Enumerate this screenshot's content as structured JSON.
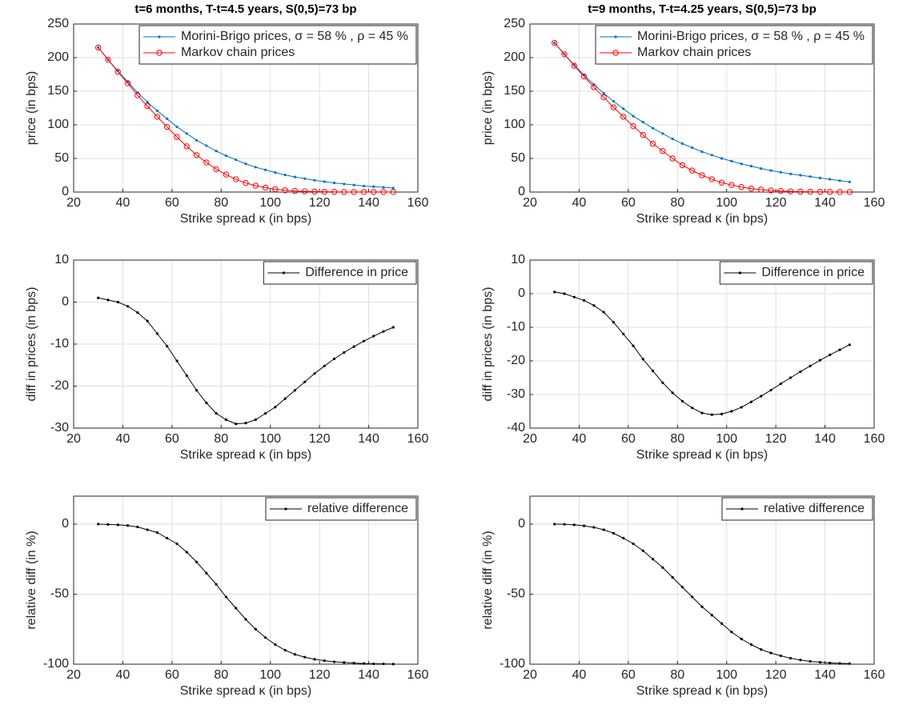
{
  "chart_data": [
    {
      "type": "line",
      "title": "t=6 months, T-t=4.5 years, S(0,5)=73 bp",
      "xlabel": "Strike spread κ (in bps)",
      "ylabel": "price (in bps)",
      "x": [
        30,
        34,
        38,
        42,
        46,
        50,
        54,
        58,
        62,
        66,
        70,
        74,
        78,
        82,
        86,
        90,
        94,
        98,
        102,
        106,
        110,
        114,
        118,
        122,
        126,
        130,
        134,
        138,
        142,
        146,
        150
      ],
      "series": [
        {
          "name": "Morini-Brigo prices, σ = 58 % , ρ = 45 %",
          "color": "#0072bd",
          "marker": "dot",
          "values": [
            215,
            197,
            180,
            164,
            148,
            134,
            121,
            109,
            97,
            87,
            77,
            69,
            61,
            54,
            48,
            42,
            37,
            33,
            29,
            25.5,
            22.5,
            20,
            17.5,
            15.5,
            13.5,
            12,
            10.5,
            9,
            8,
            7,
            6
          ]
        },
        {
          "name": "Markov chain prices",
          "color": "#ff0000",
          "marker": "circle",
          "values": [
            215,
            197,
            179,
            162,
            144,
            128,
            112,
            97,
            82,
            68,
            55,
            44,
            34,
            26,
            19,
            13.5,
            9.5,
            6.5,
            4.2,
            2.7,
            1.7,
            1.1,
            0.7,
            0.4,
            0.3,
            0.2,
            0.1,
            0.1,
            0.1,
            0.1,
            0.1
          ]
        }
      ],
      "xlim": [
        20,
        160
      ],
      "xticks": [
        20,
        40,
        60,
        80,
        100,
        120,
        140,
        160
      ],
      "ylim": [
        0,
        250
      ],
      "yticks": [
        0,
        50,
        100,
        150,
        200,
        250
      ],
      "grid": true,
      "legend": "upper right"
    },
    {
      "type": "line",
      "title": "t=9 months, T-t=4.25 years, S(0,5)=73 bp",
      "xlabel": "Strike spread κ (in bps)",
      "ylabel": "price (in bps)",
      "x": [
        30,
        34,
        38,
        42,
        46,
        50,
        54,
        58,
        62,
        66,
        70,
        74,
        78,
        82,
        86,
        90,
        94,
        98,
        102,
        106,
        110,
        114,
        118,
        122,
        126,
        130,
        134,
        138,
        142,
        146,
        150
      ],
      "series": [
        {
          "name": "Morini-Brigo prices, σ = 58 % , ρ = 45 %",
          "color": "#0072bd",
          "marker": "dot",
          "values": [
            222,
            205,
            189,
            174,
            160,
            147,
            135,
            124,
            113,
            104,
            95,
            87,
            79,
            72,
            66,
            60,
            55,
            50,
            46,
            42,
            38.5,
            35,
            32,
            29.5,
            27,
            25,
            23,
            21,
            19,
            17,
            15
          ]
        },
        {
          "name": "Markov chain prices",
          "color": "#ff0000",
          "marker": "circle",
          "values": [
            222,
            205,
            188,
            172,
            156,
            141,
            126,
            112,
            98,
            85,
            72,
            61,
            50,
            40,
            32,
            25,
            19,
            14,
            10.5,
            7.5,
            5.2,
            3.6,
            2.4,
            1.6,
            1,
            0.6,
            0.4,
            0.3,
            0.2,
            0.1,
            0.1
          ]
        }
      ],
      "xlim": [
        20,
        160
      ],
      "xticks": [
        20,
        40,
        60,
        80,
        100,
        120,
        140,
        160
      ],
      "ylim": [
        0,
        250
      ],
      "yticks": [
        0,
        50,
        100,
        150,
        200,
        250
      ],
      "grid": true,
      "legend": "upper right"
    },
    {
      "type": "line",
      "xlabel": "Strike spread κ (in bps)",
      "ylabel": "diff in prices (in bps)",
      "x": [
        30,
        34,
        38,
        42,
        46,
        50,
        54,
        58,
        62,
        66,
        70,
        74,
        78,
        82,
        86,
        90,
        94,
        98,
        102,
        106,
        110,
        114,
        118,
        122,
        126,
        130,
        134,
        138,
        142,
        146,
        150
      ],
      "series": [
        {
          "name": "Difference in price",
          "color": "#000000",
          "marker": "dot",
          "values": [
            1,
            0.5,
            0,
            -1,
            -2.5,
            -4.5,
            -7.5,
            -10.5,
            -14,
            -17.5,
            -21,
            -24,
            -26.5,
            -28,
            -29,
            -28.8,
            -28,
            -26.5,
            -25,
            -23,
            -21,
            -19,
            -17,
            -15.2,
            -13.5,
            -12,
            -10.6,
            -9.3,
            -8.1,
            -7,
            -6
          ]
        }
      ],
      "xlim": [
        20,
        160
      ],
      "xticks": [
        20,
        40,
        60,
        80,
        100,
        120,
        140,
        160
      ],
      "ylim": [
        -30,
        10
      ],
      "yticks": [
        -30,
        -20,
        -10,
        0,
        10
      ],
      "grid": true,
      "legend": "upper right"
    },
    {
      "type": "line",
      "xlabel": "Strike spread κ (in bps)",
      "ylabel": "diff in prices (in bps)",
      "x": [
        30,
        34,
        38,
        42,
        46,
        50,
        54,
        58,
        62,
        66,
        70,
        74,
        78,
        82,
        86,
        90,
        94,
        98,
        102,
        106,
        110,
        114,
        118,
        122,
        126,
        130,
        134,
        138,
        142,
        146,
        150
      ],
      "series": [
        {
          "name": "Difference in price",
          "color": "#000000",
          "marker": "dot",
          "values": [
            0.5,
            0,
            -1,
            -2,
            -3.5,
            -5.5,
            -8.5,
            -12,
            -15.5,
            -19.5,
            -23,
            -26.5,
            -29.5,
            -32,
            -34,
            -35.5,
            -36,
            -35.8,
            -35,
            -33.8,
            -32.2,
            -30.5,
            -28.7,
            -26.8,
            -25,
            -23.2,
            -21.5,
            -19.8,
            -18.2,
            -16.7,
            -15.2
          ]
        }
      ],
      "xlim": [
        20,
        160
      ],
      "xticks": [
        20,
        40,
        60,
        80,
        100,
        120,
        140,
        160
      ],
      "ylim": [
        -40,
        10
      ],
      "yticks": [
        -40,
        -30,
        -20,
        -10,
        0,
        10
      ],
      "grid": true,
      "legend": "upper right"
    },
    {
      "type": "line",
      "xlabel": "Strike spread κ (in bps)",
      "ylabel": "relative diff (in %)",
      "x": [
        30,
        34,
        38,
        42,
        46,
        50,
        54,
        58,
        62,
        66,
        70,
        74,
        78,
        82,
        86,
        90,
        94,
        98,
        102,
        106,
        110,
        114,
        118,
        122,
        126,
        130,
        134,
        138,
        142,
        146,
        150
      ],
      "series": [
        {
          "name": "relative difference",
          "color": "#000000",
          "marker": "dot",
          "values": [
            0,
            -0.2,
            -0.5,
            -1,
            -2,
            -4,
            -6,
            -10,
            -14,
            -20,
            -27,
            -35,
            -43,
            -52,
            -60,
            -68,
            -75,
            -81,
            -86,
            -90,
            -93,
            -95,
            -96.5,
            -97.5,
            -98.3,
            -98.8,
            -99.2,
            -99.5,
            -99.7,
            -99.8,
            -99.9
          ]
        }
      ],
      "xlim": [
        20,
        160
      ],
      "xticks": [
        20,
        40,
        60,
        80,
        100,
        120,
        140,
        160
      ],
      "ylim": [
        -100,
        20
      ],
      "yticks": [
        -100,
        -50,
        0
      ],
      "grid": true,
      "legend": "upper right"
    },
    {
      "type": "line",
      "xlabel": "Strike spread κ (in bps)",
      "ylabel": "relative diff (in %)",
      "x": [
        30,
        34,
        38,
        42,
        46,
        50,
        54,
        58,
        62,
        66,
        70,
        74,
        78,
        82,
        86,
        90,
        94,
        98,
        102,
        106,
        110,
        114,
        118,
        122,
        126,
        130,
        134,
        138,
        142,
        146,
        150
      ],
      "series": [
        {
          "name": "relative difference",
          "color": "#000000",
          "marker": "dot",
          "values": [
            0,
            -0.1,
            -0.5,
            -1.2,
            -2.3,
            -4,
            -6.5,
            -10,
            -14,
            -19,
            -25,
            -31,
            -38,
            -45,
            -52,
            -59,
            -65,
            -71,
            -77,
            -82,
            -86,
            -89.5,
            -92,
            -94,
            -95.8,
            -97,
            -98,
            -98.6,
            -99.1,
            -99.4,
            -99.6
          ]
        }
      ],
      "xlim": [
        20,
        160
      ],
      "xticks": [
        20,
        40,
        60,
        80,
        100,
        120,
        140,
        160
      ],
      "ylim": [
        -100,
        20
      ],
      "yticks": [
        -100,
        -50,
        0
      ],
      "grid": true,
      "legend": "upper right"
    }
  ]
}
